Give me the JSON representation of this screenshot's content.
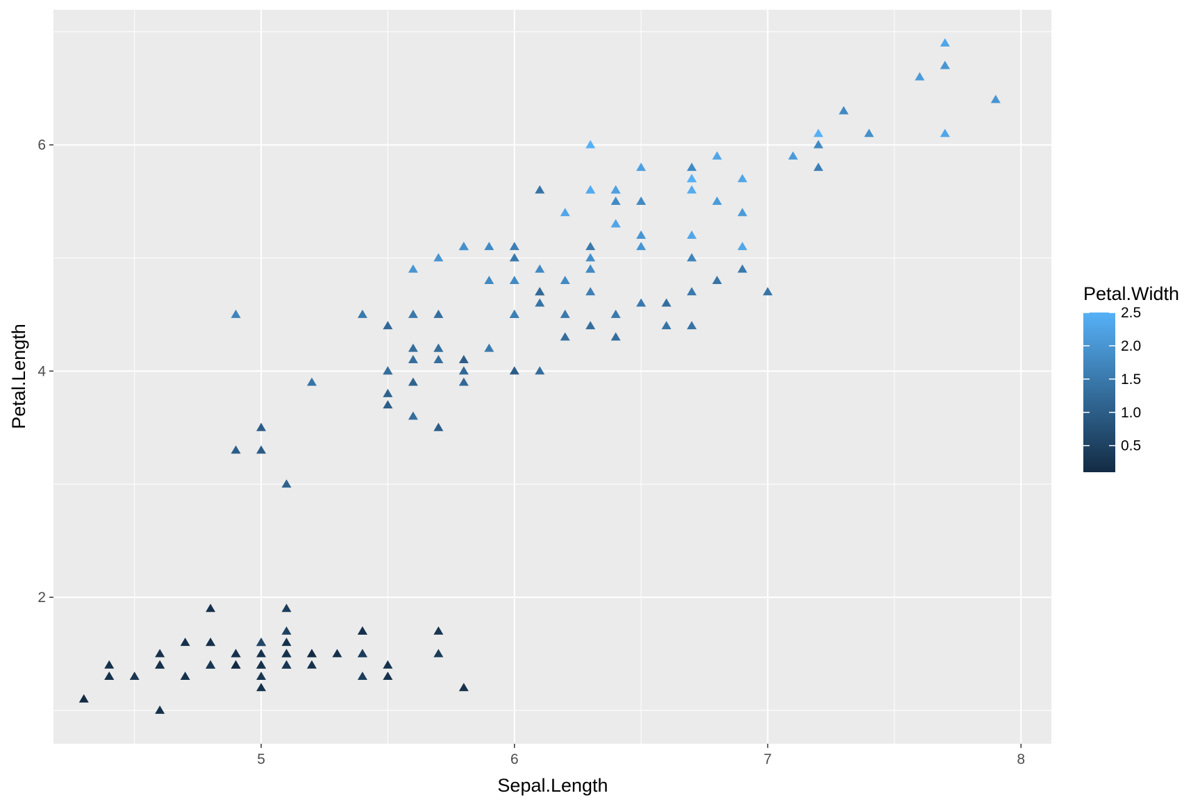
{
  "chart_data": {
    "type": "scatter",
    "title": "",
    "xlabel": "Sepal.Length",
    "ylabel": "Petal.Length",
    "xlim": [
      4.18,
      8.12
    ],
    "ylim": [
      0.705,
      7.195
    ],
    "x_ticks": [
      5,
      6,
      7,
      8
    ],
    "y_ticks": [
      2,
      4,
      6
    ],
    "grid": true,
    "marker": "triangle",
    "panel_background": "#EBEBEB",
    "grid_color": "#FFFFFF",
    "legend": {
      "title": "Petal.Width",
      "position": "right",
      "type": "colorbar",
      "range": [
        0.1,
        2.5
      ],
      "breaks": [
        "0.5",
        "1.0",
        "1.5",
        "2.0",
        "2.5"
      ],
      "low_color": "#132B43",
      "high_color": "#56B1F7"
    },
    "points": [
      {
        "x": 5.1,
        "y": 1.4,
        "c": 0.2
      },
      {
        "x": 4.9,
        "y": 1.4,
        "c": 0.2
      },
      {
        "x": 4.7,
        "y": 1.3,
        "c": 0.2
      },
      {
        "x": 4.6,
        "y": 1.5,
        "c": 0.2
      },
      {
        "x": 5.0,
        "y": 1.4,
        "c": 0.2
      },
      {
        "x": 5.4,
        "y": 1.7,
        "c": 0.4
      },
      {
        "x": 4.6,
        "y": 1.4,
        "c": 0.3
      },
      {
        "x": 5.0,
        "y": 1.5,
        "c": 0.2
      },
      {
        "x": 4.4,
        "y": 1.4,
        "c": 0.2
      },
      {
        "x": 4.9,
        "y": 1.5,
        "c": 0.1
      },
      {
        "x": 5.4,
        "y": 1.5,
        "c": 0.2
      },
      {
        "x": 4.8,
        "y": 1.6,
        "c": 0.2
      },
      {
        "x": 4.8,
        "y": 1.4,
        "c": 0.1
      },
      {
        "x": 4.3,
        "y": 1.1,
        "c": 0.1
      },
      {
        "x": 5.8,
        "y": 1.2,
        "c": 0.2
      },
      {
        "x": 5.7,
        "y": 1.5,
        "c": 0.4
      },
      {
        "x": 5.4,
        "y": 1.3,
        "c": 0.4
      },
      {
        "x": 5.1,
        "y": 1.4,
        "c": 0.3
      },
      {
        "x": 5.7,
        "y": 1.7,
        "c": 0.3
      },
      {
        "x": 5.1,
        "y": 1.5,
        "c": 0.3
      },
      {
        "x": 5.4,
        "y": 1.7,
        "c": 0.2
      },
      {
        "x": 5.1,
        "y": 1.5,
        "c": 0.4
      },
      {
        "x": 4.6,
        "y": 1.0,
        "c": 0.2
      },
      {
        "x": 5.1,
        "y": 1.7,
        "c": 0.5
      },
      {
        "x": 4.8,
        "y": 1.9,
        "c": 0.2
      },
      {
        "x": 5.0,
        "y": 1.6,
        "c": 0.2
      },
      {
        "x": 5.0,
        "y": 1.6,
        "c": 0.4
      },
      {
        "x": 5.2,
        "y": 1.5,
        "c": 0.2
      },
      {
        "x": 5.2,
        "y": 1.4,
        "c": 0.2
      },
      {
        "x": 4.7,
        "y": 1.6,
        "c": 0.2
      },
      {
        "x": 4.8,
        "y": 1.6,
        "c": 0.2
      },
      {
        "x": 5.4,
        "y": 1.5,
        "c": 0.4
      },
      {
        "x": 5.2,
        "y": 1.5,
        "c": 0.1
      },
      {
        "x": 5.5,
        "y": 1.4,
        "c": 0.2
      },
      {
        "x": 4.9,
        "y": 1.5,
        "c": 0.2
      },
      {
        "x": 5.0,
        "y": 1.2,
        "c": 0.2
      },
      {
        "x": 5.5,
        "y": 1.3,
        "c": 0.2
      },
      {
        "x": 4.9,
        "y": 1.4,
        "c": 0.1
      },
      {
        "x": 4.4,
        "y": 1.3,
        "c": 0.2
      },
      {
        "x": 5.1,
        "y": 1.5,
        "c": 0.2
      },
      {
        "x": 5.0,
        "y": 1.3,
        "c": 0.3
      },
      {
        "x": 4.5,
        "y": 1.3,
        "c": 0.3
      },
      {
        "x": 4.4,
        "y": 1.3,
        "c": 0.2
      },
      {
        "x": 5.0,
        "y": 1.6,
        "c": 0.6
      },
      {
        "x": 5.1,
        "y": 1.9,
        "c": 0.4
      },
      {
        "x": 4.8,
        "y": 1.4,
        "c": 0.3
      },
      {
        "x": 5.1,
        "y": 1.6,
        "c": 0.2
      },
      {
        "x": 4.6,
        "y": 1.4,
        "c": 0.2
      },
      {
        "x": 5.3,
        "y": 1.5,
        "c": 0.2
      },
      {
        "x": 5.0,
        "y": 1.4,
        "c": 0.2
      },
      {
        "x": 7.0,
        "y": 4.7,
        "c": 1.4
      },
      {
        "x": 6.4,
        "y": 4.5,
        "c": 1.5
      },
      {
        "x": 6.9,
        "y": 4.9,
        "c": 1.5
      },
      {
        "x": 5.5,
        "y": 4.0,
        "c": 1.3
      },
      {
        "x": 6.5,
        "y": 4.6,
        "c": 1.5
      },
      {
        "x": 5.7,
        "y": 4.5,
        "c": 1.3
      },
      {
        "x": 6.3,
        "y": 4.7,
        "c": 1.6
      },
      {
        "x": 4.9,
        "y": 3.3,
        "c": 1.0
      },
      {
        "x": 6.6,
        "y": 4.6,
        "c": 1.3
      },
      {
        "x": 5.2,
        "y": 3.9,
        "c": 1.4
      },
      {
        "x": 5.0,
        "y": 3.5,
        "c": 1.0
      },
      {
        "x": 5.9,
        "y": 4.2,
        "c": 1.5
      },
      {
        "x": 6.0,
        "y": 4.0,
        "c": 1.0
      },
      {
        "x": 6.1,
        "y": 4.7,
        "c": 1.4
      },
      {
        "x": 5.6,
        "y": 3.6,
        "c": 1.3
      },
      {
        "x": 6.7,
        "y": 4.4,
        "c": 1.4
      },
      {
        "x": 5.6,
        "y": 4.5,
        "c": 1.5
      },
      {
        "x": 5.8,
        "y": 4.1,
        "c": 1.0
      },
      {
        "x": 6.2,
        "y": 4.5,
        "c": 1.5
      },
      {
        "x": 5.6,
        "y": 3.9,
        "c": 1.1
      },
      {
        "x": 5.9,
        "y": 4.8,
        "c": 1.8
      },
      {
        "x": 6.1,
        "y": 4.0,
        "c": 1.3
      },
      {
        "x": 6.3,
        "y": 4.9,
        "c": 1.5
      },
      {
        "x": 6.1,
        "y": 4.7,
        "c": 1.2
      },
      {
        "x": 6.4,
        "y": 4.3,
        "c": 1.3
      },
      {
        "x": 6.6,
        "y": 4.4,
        "c": 1.4
      },
      {
        "x": 6.8,
        "y": 4.8,
        "c": 1.4
      },
      {
        "x": 6.7,
        "y": 5.0,
        "c": 1.7
      },
      {
        "x": 6.0,
        "y": 4.5,
        "c": 1.5
      },
      {
        "x": 5.7,
        "y": 3.5,
        "c": 1.0
      },
      {
        "x": 5.5,
        "y": 3.8,
        "c": 1.1
      },
      {
        "x": 5.5,
        "y": 3.7,
        "c": 1.0
      },
      {
        "x": 5.8,
        "y": 3.9,
        "c": 1.2
      },
      {
        "x": 6.0,
        "y": 5.1,
        "c": 1.6
      },
      {
        "x": 5.4,
        "y": 4.5,
        "c": 1.5
      },
      {
        "x": 6.0,
        "y": 4.5,
        "c": 1.6
      },
      {
        "x": 6.7,
        "y": 4.7,
        "c": 1.5
      },
      {
        "x": 6.3,
        "y": 4.4,
        "c": 1.3
      },
      {
        "x": 5.6,
        "y": 4.1,
        "c": 1.3
      },
      {
        "x": 5.5,
        "y": 4.0,
        "c": 1.3
      },
      {
        "x": 5.5,
        "y": 4.4,
        "c": 1.2
      },
      {
        "x": 6.1,
        "y": 4.6,
        "c": 1.4
      },
      {
        "x": 5.8,
        "y": 4.0,
        "c": 1.2
      },
      {
        "x": 5.0,
        "y": 3.3,
        "c": 1.0
      },
      {
        "x": 5.6,
        "y": 4.2,
        "c": 1.3
      },
      {
        "x": 5.7,
        "y": 4.2,
        "c": 1.2
      },
      {
        "x": 5.7,
        "y": 4.2,
        "c": 1.3
      },
      {
        "x": 6.2,
        "y": 4.3,
        "c": 1.3
      },
      {
        "x": 5.1,
        "y": 3.0,
        "c": 1.1
      },
      {
        "x": 5.7,
        "y": 4.1,
        "c": 1.3
      },
      {
        "x": 6.3,
        "y": 6.0,
        "c": 2.5
      },
      {
        "x": 5.8,
        "y": 5.1,
        "c": 1.9
      },
      {
        "x": 7.1,
        "y": 5.9,
        "c": 2.1
      },
      {
        "x": 6.3,
        "y": 5.6,
        "c": 1.8
      },
      {
        "x": 6.5,
        "y": 5.8,
        "c": 2.2
      },
      {
        "x": 7.6,
        "y": 6.6,
        "c": 2.1
      },
      {
        "x": 4.9,
        "y": 4.5,
        "c": 1.7
      },
      {
        "x": 7.3,
        "y": 6.3,
        "c": 1.8
      },
      {
        "x": 6.7,
        "y": 5.8,
        "c": 1.8
      },
      {
        "x": 7.2,
        "y": 6.1,
        "c": 2.5
      },
      {
        "x": 6.5,
        "y": 5.1,
        "c": 2.0
      },
      {
        "x": 6.4,
        "y": 5.3,
        "c": 1.9
      },
      {
        "x": 6.8,
        "y": 5.5,
        "c": 2.1
      },
      {
        "x": 5.7,
        "y": 5.0,
        "c": 2.0
      },
      {
        "x": 5.8,
        "y": 5.1,
        "c": 2.4
      },
      {
        "x": 6.4,
        "y": 5.3,
        "c": 2.3
      },
      {
        "x": 6.5,
        "y": 5.5,
        "c": 1.8
      },
      {
        "x": 7.7,
        "y": 6.7,
        "c": 2.2
      },
      {
        "x": 7.7,
        "y": 6.9,
        "c": 2.3
      },
      {
        "x": 6.0,
        "y": 5.0,
        "c": 1.5
      },
      {
        "x": 6.9,
        "y": 5.7,
        "c": 2.3
      },
      {
        "x": 5.6,
        "y": 4.9,
        "c": 2.0
      },
      {
        "x": 7.7,
        "y": 6.7,
        "c": 2.0
      },
      {
        "x": 6.3,
        "y": 4.9,
        "c": 1.8
      },
      {
        "x": 6.7,
        "y": 5.7,
        "c": 2.1
      },
      {
        "x": 7.2,
        "y": 6.0,
        "c": 1.8
      },
      {
        "x": 6.2,
        "y": 4.8,
        "c": 1.8
      },
      {
        "x": 6.1,
        "y": 4.9,
        "c": 1.8
      },
      {
        "x": 6.4,
        "y": 5.6,
        "c": 2.1
      },
      {
        "x": 7.2,
        "y": 5.8,
        "c": 1.6
      },
      {
        "x": 7.4,
        "y": 6.1,
        "c": 1.9
      },
      {
        "x": 7.9,
        "y": 6.4,
        "c": 2.0
      },
      {
        "x": 6.4,
        "y": 5.6,
        "c": 2.2
      },
      {
        "x": 6.3,
        "y": 5.1,
        "c": 1.5
      },
      {
        "x": 6.1,
        "y": 5.6,
        "c": 1.4
      },
      {
        "x": 7.7,
        "y": 6.1,
        "c": 2.3
      },
      {
        "x": 6.3,
        "y": 5.6,
        "c": 2.4
      },
      {
        "x": 6.4,
        "y": 5.5,
        "c": 1.8
      },
      {
        "x": 6.0,
        "y": 4.8,
        "c": 1.8
      },
      {
        "x": 6.9,
        "y": 5.4,
        "c": 2.1
      },
      {
        "x": 6.7,
        "y": 5.6,
        "c": 2.4
      },
      {
        "x": 6.9,
        "y": 5.1,
        "c": 2.3
      },
      {
        "x": 5.8,
        "y": 5.1,
        "c": 1.9
      },
      {
        "x": 6.8,
        "y": 5.9,
        "c": 2.3
      },
      {
        "x": 6.7,
        "y": 5.7,
        "c": 2.5
      },
      {
        "x": 6.7,
        "y": 5.2,
        "c": 2.3
      },
      {
        "x": 6.3,
        "y": 5.0,
        "c": 1.9
      },
      {
        "x": 6.5,
        "y": 5.2,
        "c": 2.0
      },
      {
        "x": 6.2,
        "y": 5.4,
        "c": 2.3
      },
      {
        "x": 5.9,
        "y": 5.1,
        "c": 1.8
      }
    ]
  }
}
